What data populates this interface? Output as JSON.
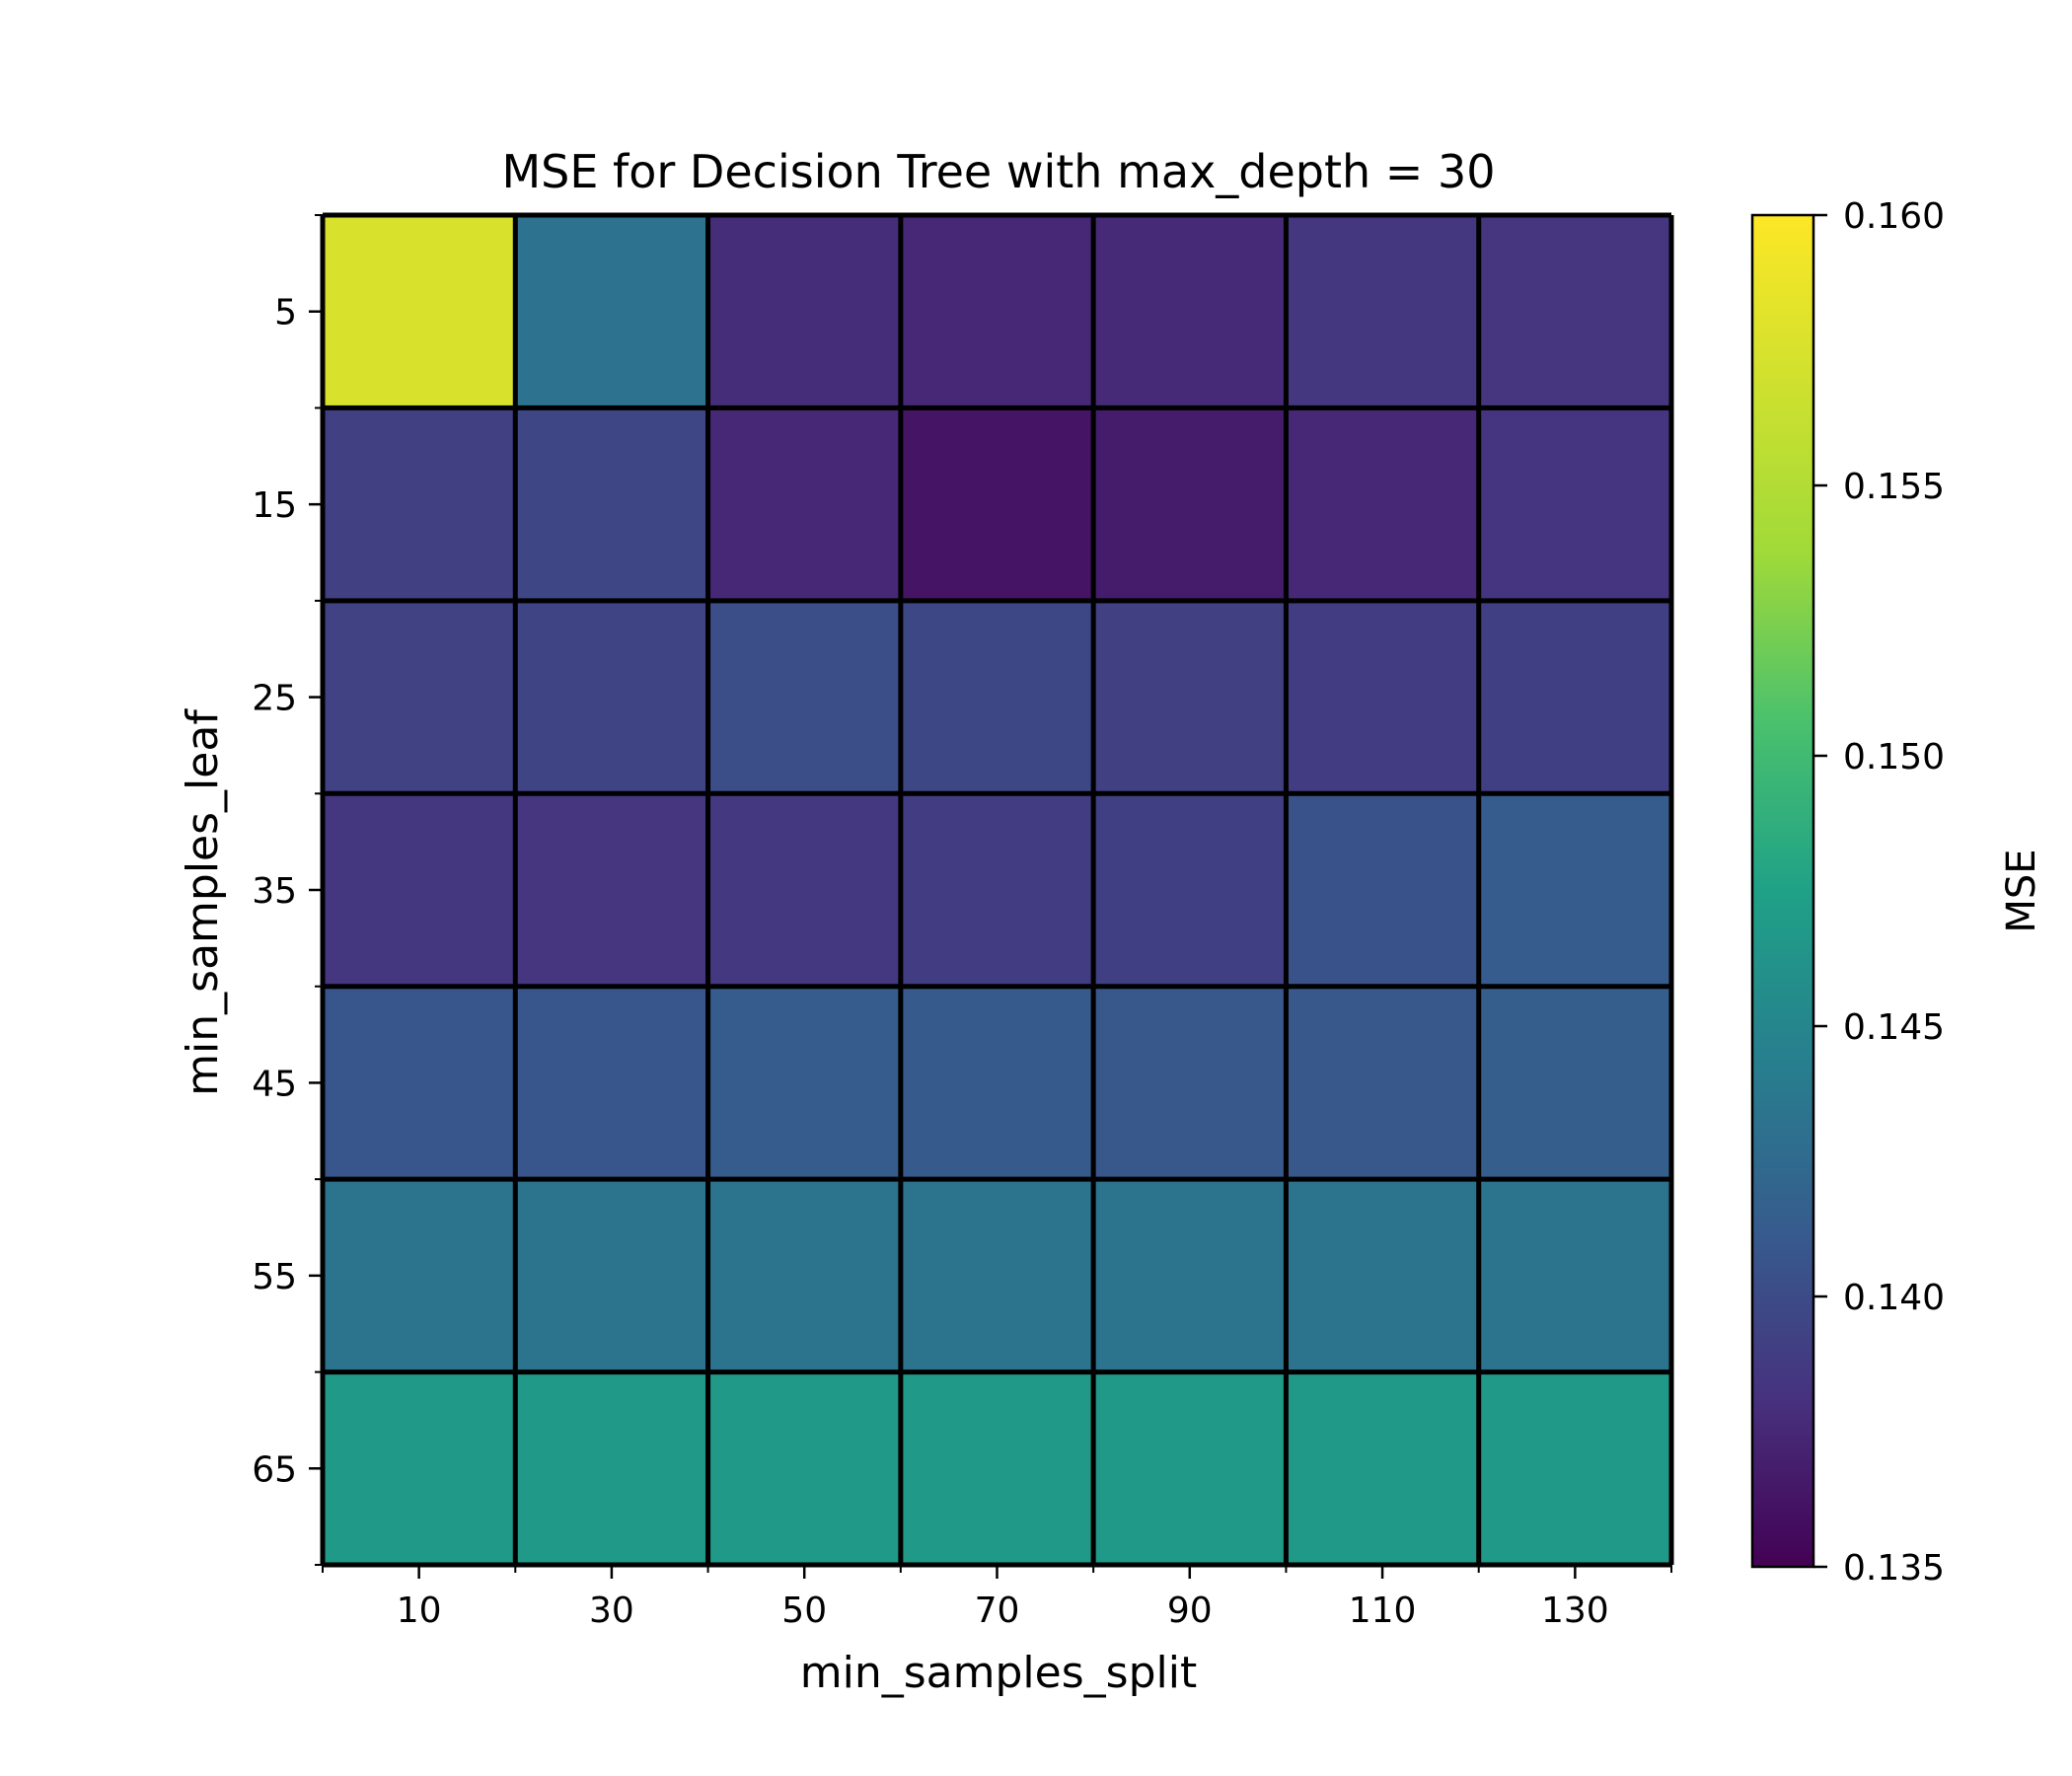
{
  "chart_data": {
    "type": "heatmap",
    "title": "MSE for Decision Tree with max_depth = 30",
    "xlabel": "min_samples_split",
    "ylabel": "min_samples_leaf",
    "x": [
      "10",
      "30",
      "50",
      "70",
      "90",
      "110",
      "130"
    ],
    "y": [
      "5",
      "15",
      "25",
      "35",
      "45",
      "55",
      "65"
    ],
    "values": [
      [
        0.1575,
        0.1432,
        0.1378,
        0.1375,
        0.1376,
        0.1385,
        0.1384
      ],
      [
        0.1392,
        0.1396,
        0.1375,
        0.1362,
        0.1367,
        0.1375,
        0.1383
      ],
      [
        0.1393,
        0.1395,
        0.1402,
        0.1397,
        0.1392,
        0.1389,
        0.1391
      ],
      [
        0.1385,
        0.1384,
        0.1386,
        0.1389,
        0.1391,
        0.1406,
        0.1412
      ],
      [
        0.1408,
        0.1408,
        0.1412,
        0.1411,
        0.1409,
        0.1409,
        0.1414
      ],
      [
        0.1433,
        0.1433,
        0.1433,
        0.1433,
        0.1433,
        0.1433,
        0.1433
      ],
      [
        0.1468,
        0.1468,
        0.1468,
        0.1468,
        0.1468,
        0.1468,
        0.1468
      ]
    ],
    "colormap": "viridis",
    "colorbar": {
      "label": "MSE",
      "range": [
        0.135,
        0.16
      ],
      "ticks": [
        "0.135",
        "0.140",
        "0.145",
        "0.150",
        "0.155",
        "0.160"
      ]
    },
    "grid": false,
    "legend": "none"
  }
}
